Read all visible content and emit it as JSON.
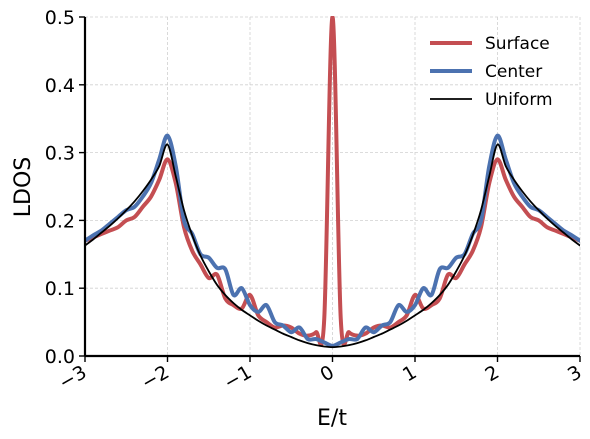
{
  "chart_data": {
    "type": "line",
    "xlabel": "E/t",
    "ylabel": "LDOS",
    "xlim": [
      -3,
      3
    ],
    "ylim": [
      0,
      0.5
    ],
    "xticks": [
      -3,
      -2,
      -1,
      0,
      1,
      2,
      3
    ],
    "xtick_labels": [
      "−3",
      "−2",
      "−1",
      "0",
      "1",
      "2",
      "3"
    ],
    "yticks": [
      0.0,
      0.1,
      0.2,
      0.3,
      0.4,
      0.5
    ],
    "ytick_labels": [
      "0.0",
      "0.1",
      "0.2",
      "0.3",
      "0.4",
      "0.5"
    ],
    "grid": true,
    "legend_position": "top-right",
    "x": [
      -3.0,
      -2.9,
      -2.8,
      -2.7,
      -2.6,
      -2.5,
      -2.4,
      -2.3,
      -2.2,
      -2.1,
      -2.0,
      -1.9,
      -1.8,
      -1.7,
      -1.6,
      -1.5,
      -1.4,
      -1.3,
      -1.2,
      -1.1,
      -1.0,
      -0.9,
      -0.8,
      -0.7,
      -0.6,
      -0.5,
      -0.4,
      -0.3,
      -0.2,
      -0.1,
      0.0,
      0.1,
      0.2,
      0.3,
      0.4,
      0.5,
      0.6,
      0.7,
      0.8,
      0.9,
      1.0,
      1.1,
      1.2,
      1.3,
      1.4,
      1.5,
      1.6,
      1.7,
      1.8,
      1.9,
      2.0,
      2.1,
      2.2,
      2.3,
      2.4,
      2.5,
      2.6,
      2.7,
      2.8,
      2.9,
      3.0
    ],
    "series": [
      {
        "name": "Surface",
        "color": "#c44e52",
        "values": [
          0.17,
          0.175,
          0.18,
          0.185,
          0.19,
          0.2,
          0.205,
          0.22,
          0.235,
          0.26,
          0.29,
          0.255,
          0.19,
          0.155,
          0.135,
          0.115,
          0.12,
          0.085,
          0.075,
          0.07,
          0.09,
          0.06,
          0.05,
          0.042,
          0.045,
          0.042,
          0.033,
          0.03,
          0.035,
          0.055,
          0.5,
          0.055,
          0.035,
          0.03,
          0.033,
          0.042,
          0.045,
          0.042,
          0.05,
          0.06,
          0.09,
          0.07,
          0.075,
          0.085,
          0.12,
          0.115,
          0.135,
          0.155,
          0.19,
          0.255,
          0.29,
          0.26,
          0.235,
          0.22,
          0.205,
          0.2,
          0.19,
          0.185,
          0.18,
          0.175,
          0.17
        ]
      },
      {
        "name": "Center",
        "color": "#4c72b0",
        "values": [
          0.17,
          0.178,
          0.185,
          0.195,
          0.205,
          0.215,
          0.22,
          0.235,
          0.255,
          0.29,
          0.325,
          0.28,
          0.2,
          0.18,
          0.15,
          0.145,
          0.13,
          0.128,
          0.09,
          0.1,
          0.075,
          0.065,
          0.075,
          0.05,
          0.045,
          0.035,
          0.042,
          0.025,
          0.025,
          0.02,
          0.015,
          0.02,
          0.025,
          0.025,
          0.042,
          0.035,
          0.045,
          0.05,
          0.075,
          0.065,
          0.075,
          0.1,
          0.09,
          0.128,
          0.13,
          0.145,
          0.15,
          0.18,
          0.2,
          0.28,
          0.325,
          0.29,
          0.255,
          0.235,
          0.22,
          0.215,
          0.205,
          0.195,
          0.185,
          0.178,
          0.17
        ]
      },
      {
        "name": "Uniform",
        "color": "#000000",
        "values": [
          0.163,
          0.172,
          0.182,
          0.192,
          0.203,
          0.215,
          0.228,
          0.243,
          0.26,
          0.28,
          0.312,
          0.265,
          0.215,
          0.178,
          0.148,
          0.125,
          0.105,
          0.09,
          0.078,
          0.068,
          0.06,
          0.052,
          0.045,
          0.039,
          0.033,
          0.028,
          0.023,
          0.019,
          0.016,
          0.014,
          0.013,
          0.014,
          0.016,
          0.019,
          0.023,
          0.028,
          0.033,
          0.039,
          0.045,
          0.052,
          0.06,
          0.068,
          0.078,
          0.09,
          0.105,
          0.125,
          0.148,
          0.178,
          0.215,
          0.265,
          0.312,
          0.28,
          0.26,
          0.243,
          0.228,
          0.215,
          0.203,
          0.192,
          0.182,
          0.172,
          0.163
        ]
      }
    ]
  }
}
